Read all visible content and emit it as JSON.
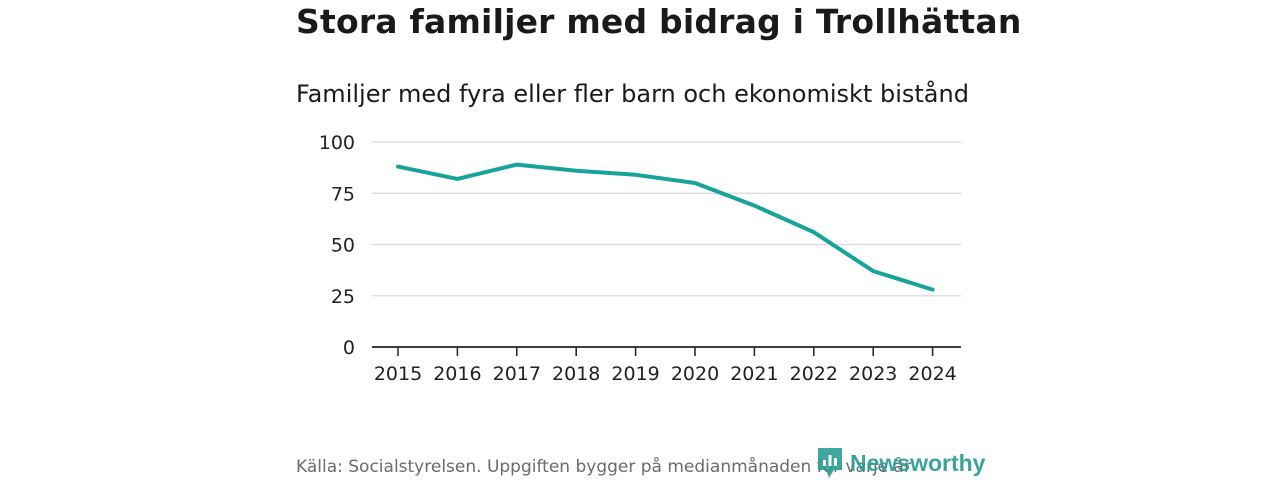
{
  "header": {
    "title": "Stora familjer med bidrag i Trollhättan",
    "subtitle": "Familjer med fyra eller fler barn och ekonomiskt bistånd"
  },
  "footer": {
    "source": "Källa: Socialstyrelsen. Uppgiften bygger på medianmånaden för varje år",
    "brand": "Newsworthy"
  },
  "colors": {
    "line": "#16a39a",
    "grid": "#d9d9d9",
    "axis": "#222222",
    "brand": "#2a9d94"
  },
  "chart_data": {
    "type": "line",
    "title": "Stora familjer med bidrag i Trollhättan",
    "subtitle": "Familjer med fyra eller fler barn och ekonomiskt bistånd",
    "xlabel": "",
    "ylabel": "",
    "x": [
      "2015",
      "2016",
      "2017",
      "2018",
      "2019",
      "2020",
      "2021",
      "2022",
      "2023",
      "2024"
    ],
    "series": [
      {
        "name": "Familjer",
        "values": [
          88,
          82,
          89,
          86,
          84,
          80,
          69,
          56,
          37,
          28
        ]
      }
    ],
    "ylim": [
      0,
      100
    ],
    "yticks": [
      0,
      25,
      50,
      75,
      100
    ],
    "grid": true,
    "legend": "none"
  }
}
